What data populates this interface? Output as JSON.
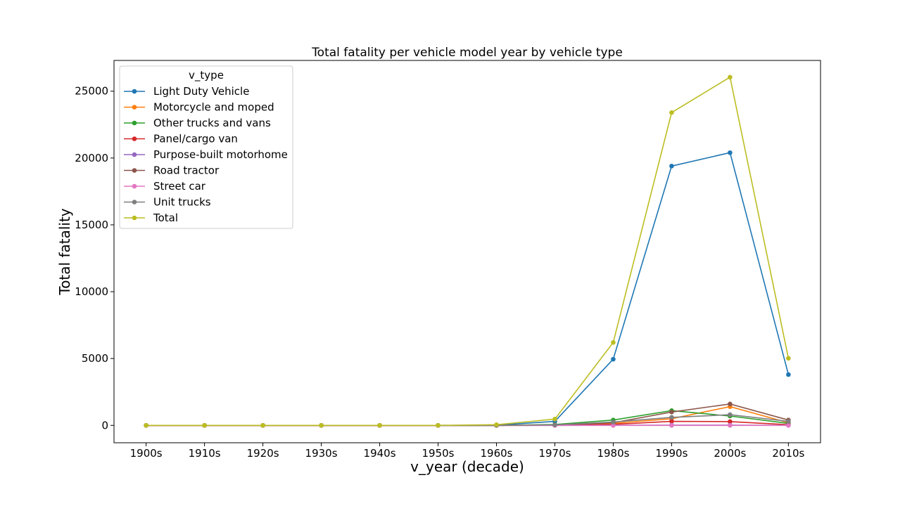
{
  "chart_data": {
    "type": "line",
    "title": "Total fatality per vehicle model year by vehicle type",
    "xlabel": "v_year (decade)",
    "ylabel": "Total fatality",
    "legend_title": "v_type",
    "legend_position": "top-left",
    "grid": false,
    "ylim": [
      -1300,
      27300
    ],
    "yticks": [
      0,
      5000,
      10000,
      15000,
      20000,
      25000
    ],
    "categories": [
      "1900s",
      "1910s",
      "1920s",
      "1930s",
      "1940s",
      "1950s",
      "1960s",
      "1970s",
      "1980s",
      "1990s",
      "2000s",
      "2010s"
    ],
    "series": [
      {
        "name": "Light Duty Vehicle",
        "color": "#1f77b4",
        "values": [
          0,
          0,
          0,
          0,
          0,
          0,
          20,
          300,
          4950,
          19400,
          20400,
          3800
        ]
      },
      {
        "name": "Motorcycle and moped",
        "color": "#ff7f0e",
        "values": [
          0,
          0,
          0,
          0,
          0,
          0,
          0,
          20,
          150,
          500,
          1400,
          200
        ]
      },
      {
        "name": "Other trucks and vans",
        "color": "#2ca02c",
        "values": [
          0,
          0,
          0,
          0,
          0,
          0,
          0,
          60,
          400,
          1100,
          700,
          150
        ]
      },
      {
        "name": "Panel/cargo van",
        "color": "#d62728",
        "values": [
          0,
          0,
          0,
          0,
          0,
          0,
          0,
          10,
          80,
          300,
          280,
          50
        ]
      },
      {
        "name": "Purpose-built motorhome",
        "color": "#9467bd",
        "values": [
          0,
          0,
          0,
          0,
          0,
          0,
          0,
          0,
          10,
          20,
          20,
          5
        ]
      },
      {
        "name": "Road tractor",
        "color": "#8c564b",
        "values": [
          0,
          0,
          0,
          0,
          0,
          0,
          0,
          30,
          200,
          1000,
          1600,
          400
        ]
      },
      {
        "name": "Street car",
        "color": "#e377c2",
        "values": [
          0,
          0,
          0,
          0,
          0,
          0,
          0,
          0,
          0,
          0,
          0,
          0
        ]
      },
      {
        "name": "Unit trucks",
        "color": "#7f7f7f",
        "values": [
          0,
          0,
          0,
          0,
          0,
          0,
          0,
          40,
          250,
          600,
          800,
          300
        ]
      },
      {
        "name": "Total",
        "color": "#bcbd22",
        "values": [
          0,
          0,
          0,
          0,
          0,
          0,
          50,
          470,
          6200,
          23400,
          26050,
          5020
        ]
      }
    ]
  }
}
